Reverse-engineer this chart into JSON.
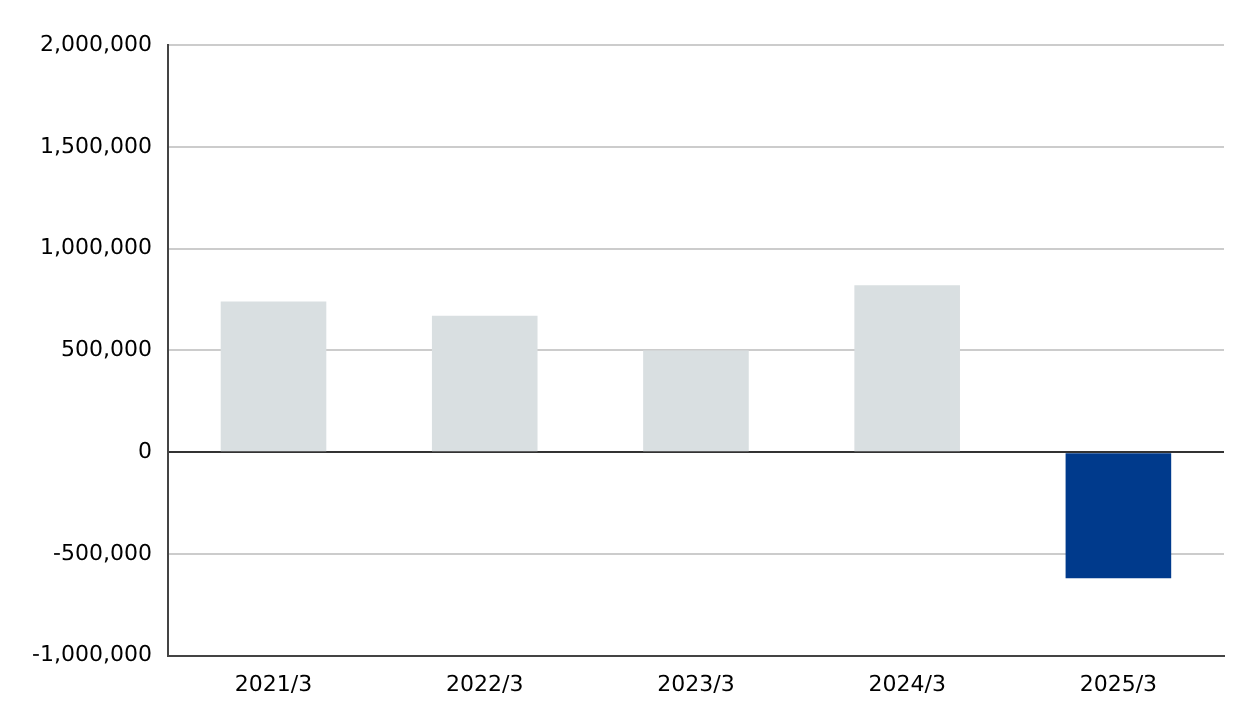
{
  "chart_data": {
    "type": "bar",
    "categories": [
      "2021/3",
      "2022/3",
      "2023/3",
      "2024/3",
      "2025/3"
    ],
    "values": [
      740000,
      670000,
      500000,
      820000,
      -620000
    ],
    "colors": [
      "#d9dfe1",
      "#d9dfe1",
      "#d9dfe1",
      "#d9dfe1",
      "#003a8c"
    ],
    "ylim": [
      -1000000,
      2000000
    ],
    "yticks": [
      {
        "value": -1000000,
        "label": "-1,000,000"
      },
      {
        "value": -500000,
        "label": "-500,000"
      },
      0,
      {
        "value": 500000,
        "label": "500,000"
      },
      {
        "value": 1000000,
        "label": "1,000,000"
      },
      {
        "value": 1500000,
        "label": "1,500,000"
      },
      {
        "value": 2000000,
        "label": "2,000,000"
      }
    ],
    "grid": "y",
    "legend": false
  }
}
